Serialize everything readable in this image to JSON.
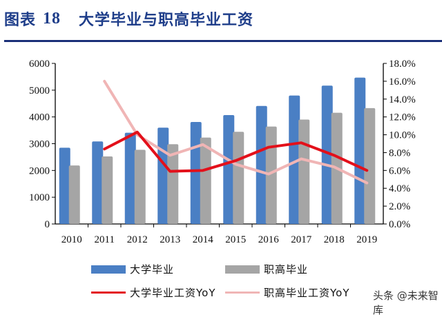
{
  "header": {
    "figure_label": "图表",
    "figure_number": "18",
    "title": "大学毕业与职高毕业工资",
    "rule_color": "#1a2f78",
    "title_color": "#1f3e8a"
  },
  "watermark": "头条 @未来智库",
  "chart_data": {
    "type": "bar",
    "title": "大学毕业与职高毕业工资",
    "categories": [
      "2010",
      "2011",
      "2012",
      "2013",
      "2014",
      "2015",
      "2016",
      "2017",
      "2018",
      "2019"
    ],
    "series": [
      {
        "name": "大学毕业",
        "type": "bar",
        "axis": "left",
        "color": "#4a7fc4",
        "values": [
          2850,
          3085,
          3410,
          3600,
          3810,
          4070,
          4410,
          4800,
          5170,
          5470
        ]
      },
      {
        "name": "职高毕业",
        "type": "bar",
        "axis": "left",
        "color": "#a5a5a5",
        "values": [
          2185,
          2525,
          2770,
          2980,
          3230,
          3445,
          3640,
          3900,
          4155,
          4330
        ]
      },
      {
        "name": "大学毕业工资YoY",
        "type": "line",
        "axis": "right",
        "color": "#e3101a",
        "values": [
          null,
          0.084,
          0.103,
          0.059,
          0.06,
          0.071,
          0.086,
          0.091,
          0.077,
          0.06
        ]
      },
      {
        "name": "职高毕业工资YoY",
        "type": "line",
        "axis": "right",
        "color": "#f0b5b5",
        "values": [
          null,
          0.16,
          0.1,
          0.077,
          0.089,
          0.067,
          0.056,
          0.073,
          0.064,
          0.046
        ]
      }
    ],
    "left_axis": {
      "min": 0,
      "max": 6000,
      "ticks": [
        "0",
        "1000",
        "2000",
        "3000",
        "4000",
        "5000",
        "6000"
      ]
    },
    "right_axis": {
      "min": 0,
      "max": 0.18,
      "ticks": [
        "0.0%",
        "2.0%",
        "4.0%",
        "6.0%",
        "8.0%",
        "10.0%",
        "12.0%",
        "14.0%",
        "16.0%",
        "18.0%"
      ]
    },
    "xlabel": "",
    "ylabel": "",
    "grid": false,
    "legend_position": "bottom"
  },
  "legend": [
    {
      "label": "大学毕业",
      "kind": "bar",
      "color": "#4a7fc4"
    },
    {
      "label": "职高毕业",
      "kind": "bar",
      "color": "#a5a5a5"
    },
    {
      "label": "大学毕业工资YoY",
      "kind": "line",
      "color": "#e3101a"
    },
    {
      "label": "职高毕业工资YoY",
      "kind": "line",
      "color": "#f0b5b5"
    }
  ]
}
